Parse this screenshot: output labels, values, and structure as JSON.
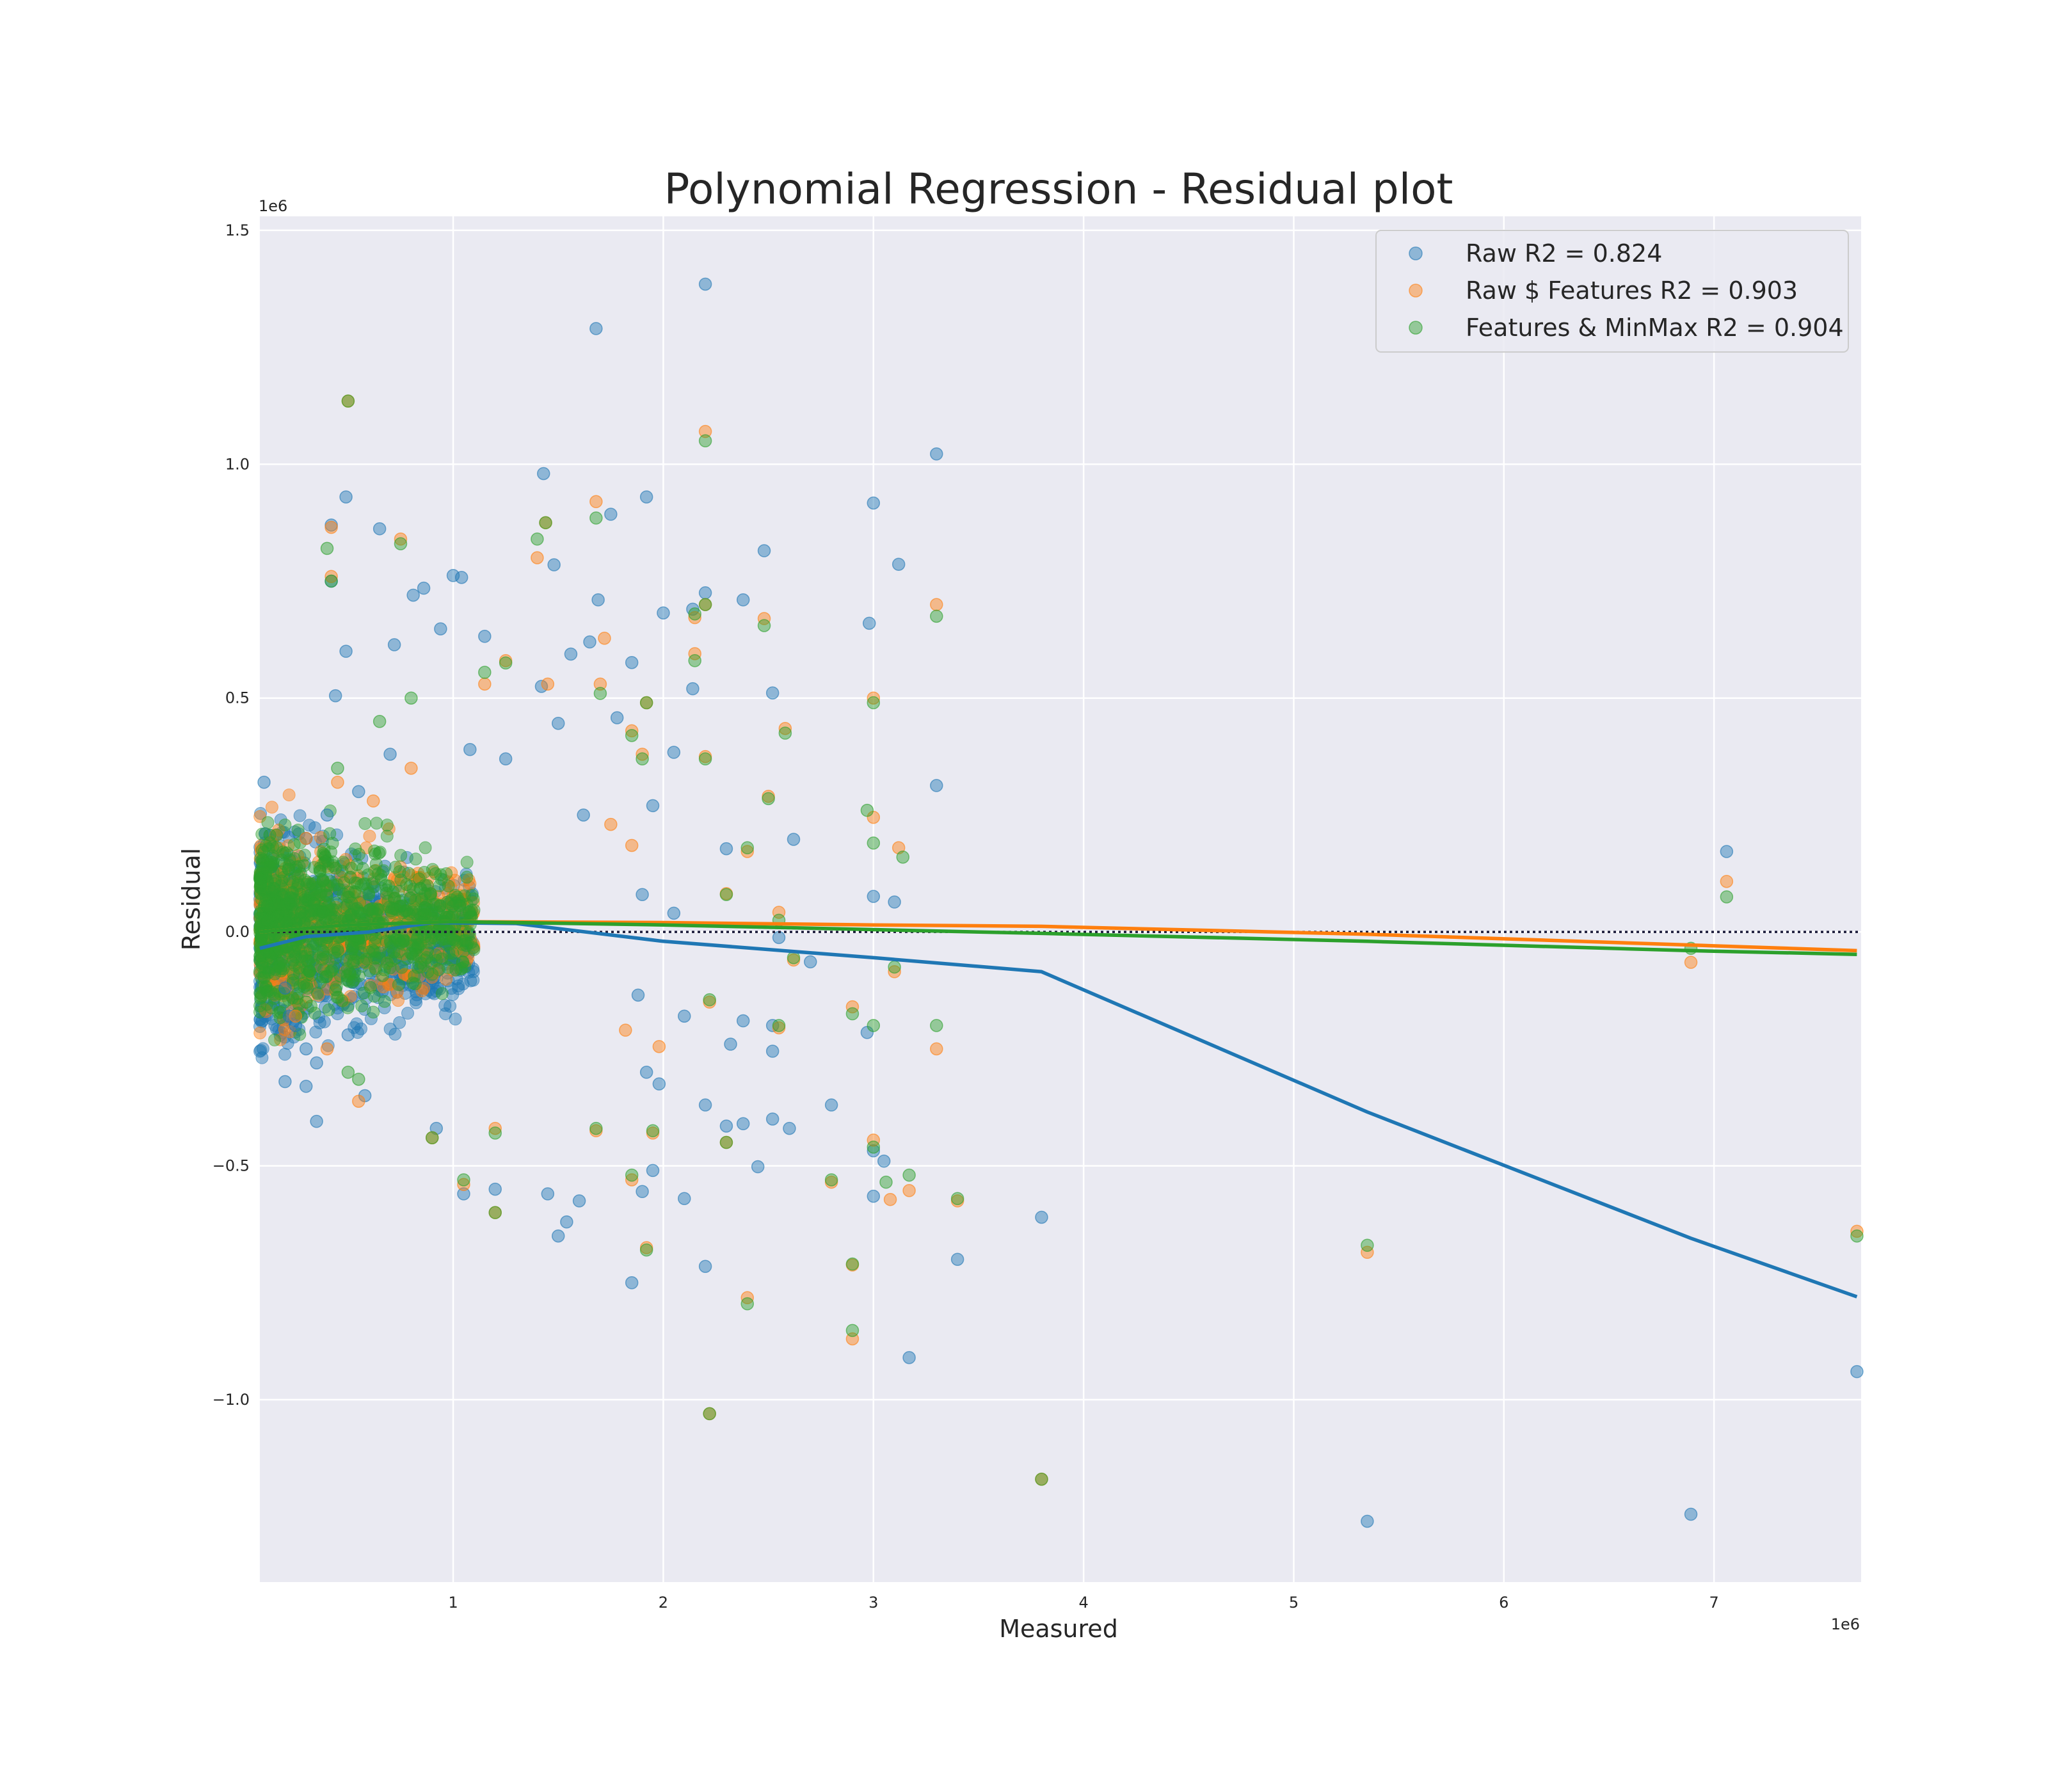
{
  "chart_data": {
    "type": "scatter",
    "title": "Polynomial Regression - Residual plot",
    "xlabel": "Measured",
    "ylabel": "Residual",
    "x_multiplier_label": "1e6",
    "y_multiplier_label": "1e6",
    "xlim": [
      0.08,
      7.7
    ],
    "ylim": [
      -1.39,
      1.53
    ],
    "x_ticks": [
      1,
      2,
      3,
      4,
      5,
      6,
      7
    ],
    "x_tick_labels": [
      "1",
      "2",
      "3",
      "4",
      "5",
      "6",
      "7"
    ],
    "y_ticks": [
      -1.0,
      -0.5,
      0.0,
      0.5,
      1.0,
      1.5
    ],
    "y_tick_labels": [
      "−1.0",
      "−0.5",
      "0.0",
      "0.5",
      "1.0",
      "1.5"
    ],
    "grid": true,
    "legend_position": "top-right",
    "zero_line": {
      "y": 0,
      "style": "dotted",
      "color": "#1a1a3a"
    },
    "series": [
      {
        "name": "Raw R2 = 0.824",
        "color": "#1f77b4",
        "points": [
          [
            2.2,
            1.385
          ],
          [
            1.68,
            1.29
          ],
          [
            3.3,
            1.022
          ],
          [
            1.43,
            0.98
          ],
          [
            0.49,
            0.93
          ],
          [
            1.92,
            0.93
          ],
          [
            3.0,
            0.917
          ],
          [
            0.65,
            0.862
          ],
          [
            1.75,
            0.893
          ],
          [
            0.42,
            0.87
          ],
          [
            0.42,
            0.75
          ],
          [
            2.48,
            0.815
          ],
          [
            3.12,
            0.786
          ],
          [
            1.48,
            0.785
          ],
          [
            0.86,
            0.735
          ],
          [
            0.81,
            0.72
          ],
          [
            1.0,
            0.762
          ],
          [
            1.04,
            0.758
          ],
          [
            1.69,
            0.71
          ],
          [
            2.2,
            0.725
          ],
          [
            2.14,
            0.69
          ],
          [
            2.38,
            0.71
          ],
          [
            0.49,
            0.6
          ],
          [
            2.0,
            0.682
          ],
          [
            2.98,
            0.66
          ],
          [
            0.94,
            0.648
          ],
          [
            1.65,
            0.62
          ],
          [
            0.72,
            0.614
          ],
          [
            1.15,
            0.632
          ],
          [
            1.56,
            0.594
          ],
          [
            1.85,
            0.576
          ],
          [
            0.44,
            0.505
          ],
          [
            2.52,
            0.511
          ],
          [
            1.42,
            0.525
          ],
          [
            2.14,
            0.52
          ],
          [
            1.78,
            0.458
          ],
          [
            1.5,
            0.446
          ],
          [
            1.08,
            0.39
          ],
          [
            1.25,
            0.37
          ],
          [
            2.05,
            0.384
          ],
          [
            1.95,
            0.27
          ],
          [
            1.62,
            0.25
          ],
          [
            0.1,
            0.32
          ],
          [
            2.62,
            0.198
          ],
          [
            2.3,
            0.178
          ],
          [
            3.3,
            0.313
          ],
          [
            7.06,
            0.172
          ],
          [
            3.0,
            0.076
          ],
          [
            3.1,
            0.064
          ],
          [
            1.9,
            0.08
          ],
          [
            2.05,
            0.04
          ],
          [
            2.7,
            -0.064
          ],
          [
            2.55,
            -0.012
          ],
          [
            1.88,
            -0.135
          ],
          [
            2.1,
            -0.18
          ],
          [
            2.38,
            -0.19
          ],
          [
            2.52,
            -0.2
          ],
          [
            2.32,
            -0.24
          ],
          [
            2.97,
            -0.215
          ],
          [
            2.52,
            -0.255
          ],
          [
            1.92,
            -0.3
          ],
          [
            1.98,
            -0.325
          ],
          [
            2.2,
            -0.37
          ],
          [
            2.8,
            -0.37
          ],
          [
            2.6,
            -0.42
          ],
          [
            2.3,
            -0.415
          ],
          [
            2.38,
            -0.41
          ],
          [
            2.52,
            -0.4
          ],
          [
            3.0,
            -0.468
          ],
          [
            3.05,
            -0.49
          ],
          [
            2.45,
            -0.502
          ],
          [
            1.95,
            -0.51
          ],
          [
            3.0,
            -0.565
          ],
          [
            2.1,
            -0.57
          ],
          [
            1.9,
            -0.555
          ],
          [
            1.45,
            -0.56
          ],
          [
            1.6,
            -0.575
          ],
          [
            1.54,
            -0.62
          ],
          [
            1.5,
            -0.65
          ],
          [
            2.2,
            -0.715
          ],
          [
            1.85,
            -0.75
          ],
          [
            3.4,
            -0.7
          ],
          [
            3.8,
            -0.61
          ],
          [
            3.17,
            -0.91
          ],
          [
            0.35,
            -0.405
          ],
          [
            0.92,
            -0.42
          ],
          [
            1.05,
            -0.56
          ],
          [
            1.2,
            -0.55
          ],
          [
            0.58,
            -0.35
          ],
          [
            0.3,
            -0.33
          ],
          [
            0.2,
            -0.32
          ],
          [
            7.68,
            -0.94
          ],
          [
            5.35,
            -1.26
          ],
          [
            6.89,
            -1.245
          ],
          [
            0.3,
            0.2
          ],
          [
            0.4,
            0.25
          ],
          [
            0.55,
            0.3
          ],
          [
            0.7,
            0.38
          ],
          [
            0.25,
            -0.2
          ],
          [
            0.3,
            -0.25
          ],
          [
            0.35,
            -0.28
          ],
          [
            0.22,
            -0.18
          ],
          [
            0.2,
            -0.12
          ],
          [
            0.5,
            -0.22
          ]
        ]
      },
      {
        "name": "Raw $ Features R2 = 0.903",
        "color": "#ff7f0e",
        "points": [
          [
            0.5,
            1.135
          ],
          [
            2.2,
            1.07
          ],
          [
            1.68,
            0.92
          ],
          [
            1.44,
            0.875
          ],
          [
            0.42,
            0.865
          ],
          [
            0.75,
            0.84
          ],
          [
            1.4,
            0.8
          ],
          [
            0.42,
            0.76
          ],
          [
            3.3,
            0.7
          ],
          [
            2.2,
            0.7
          ],
          [
            2.48,
            0.67
          ],
          [
            2.15,
            0.672
          ],
          [
            2.15,
            0.595
          ],
          [
            1.72,
            0.628
          ],
          [
            1.25,
            0.58
          ],
          [
            1.7,
            0.53
          ],
          [
            3.0,
            0.5
          ],
          [
            1.15,
            0.53
          ],
          [
            1.45,
            0.53
          ],
          [
            1.92,
            0.49
          ],
          [
            2.58,
            0.435
          ],
          [
            1.85,
            0.43
          ],
          [
            1.9,
            0.38
          ],
          [
            2.2,
            0.375
          ],
          [
            2.5,
            0.29
          ],
          [
            3.0,
            0.245
          ],
          [
            1.75,
            0.23
          ],
          [
            3.12,
            0.18
          ],
          [
            1.85,
            0.185
          ],
          [
            2.4,
            0.172
          ],
          [
            2.3,
            0.082
          ],
          [
            7.06,
            0.108
          ],
          [
            2.55,
            0.042
          ],
          [
            2.62,
            -0.06
          ],
          [
            3.1,
            -0.085
          ],
          [
            1.98,
            -0.245
          ],
          [
            3.3,
            -0.25
          ],
          [
            2.55,
            -0.205
          ],
          [
            2.9,
            -0.16
          ],
          [
            1.82,
            -0.21
          ],
          [
            2.22,
            -0.15
          ],
          [
            1.95,
            -0.43
          ],
          [
            3.0,
            -0.445
          ],
          [
            2.3,
            -0.45
          ],
          [
            1.68,
            -0.425
          ],
          [
            1.2,
            -0.42
          ],
          [
            1.85,
            -0.53
          ],
          [
            2.8,
            -0.535
          ],
          [
            3.08,
            -0.572
          ],
          [
            3.17,
            -0.553
          ],
          [
            3.4,
            -0.575
          ],
          [
            1.92,
            -0.675
          ],
          [
            2.9,
            -0.712
          ],
          [
            2.4,
            -0.782
          ],
          [
            2.9,
            -0.87
          ],
          [
            0.55,
            -0.362
          ],
          [
            0.9,
            -0.44
          ],
          [
            1.05,
            -0.54
          ],
          [
            1.2,
            -0.6
          ],
          [
            5.35,
            -0.685
          ],
          [
            6.89,
            -0.065
          ],
          [
            7.68,
            -0.64
          ],
          [
            3.8,
            -1.17
          ],
          [
            2.22,
            -1.03
          ],
          [
            0.3,
            0.2
          ],
          [
            0.45,
            0.32
          ],
          [
            0.62,
            0.28
          ],
          [
            0.8,
            0.35
          ],
          [
            0.25,
            -0.18
          ],
          [
            0.4,
            -0.25
          ]
        ]
      },
      {
        "name": "Features & MinMax R2 = 0.904",
        "color": "#2ca02c",
        "points": [
          [
            0.5,
            1.135
          ],
          [
            2.2,
            1.05
          ],
          [
            1.68,
            0.885
          ],
          [
            1.44,
            0.875
          ],
          [
            1.4,
            0.84
          ],
          [
            0.75,
            0.83
          ],
          [
            0.4,
            0.82
          ],
          [
            0.42,
            0.75
          ],
          [
            3.3,
            0.675
          ],
          [
            2.48,
            0.655
          ],
          [
            2.2,
            0.7
          ],
          [
            2.15,
            0.68
          ],
          [
            2.15,
            0.58
          ],
          [
            1.25,
            0.575
          ],
          [
            1.15,
            0.555
          ],
          [
            1.7,
            0.51
          ],
          [
            3.0,
            0.49
          ],
          [
            1.92,
            0.49
          ],
          [
            2.58,
            0.425
          ],
          [
            1.85,
            0.42
          ],
          [
            1.9,
            0.37
          ],
          [
            2.2,
            0.37
          ],
          [
            2.5,
            0.285
          ],
          [
            2.97,
            0.26
          ],
          [
            3.0,
            0.19
          ],
          [
            3.14,
            0.16
          ],
          [
            2.4,
            0.18
          ],
          [
            7.06,
            0.075
          ],
          [
            2.3,
            0.08
          ],
          [
            2.55,
            0.025
          ],
          [
            2.62,
            -0.055
          ],
          [
            3.1,
            -0.075
          ],
          [
            3.3,
            -0.2
          ],
          [
            3.0,
            -0.2
          ],
          [
            2.55,
            -0.2
          ],
          [
            2.9,
            -0.175
          ],
          [
            2.22,
            -0.145
          ],
          [
            1.95,
            -0.425
          ],
          [
            3.0,
            -0.46
          ],
          [
            2.3,
            -0.45
          ],
          [
            1.68,
            -0.42
          ],
          [
            1.2,
            -0.43
          ],
          [
            1.85,
            -0.52
          ],
          [
            2.8,
            -0.53
          ],
          [
            3.17,
            -0.52
          ],
          [
            3.4,
            -0.57
          ],
          [
            3.06,
            -0.535
          ],
          [
            1.92,
            -0.68
          ],
          [
            2.9,
            -0.71
          ],
          [
            2.4,
            -0.795
          ],
          [
            2.9,
            -0.852
          ],
          [
            0.55,
            -0.315
          ],
          [
            0.9,
            -0.44
          ],
          [
            1.05,
            -0.53
          ],
          [
            1.2,
            -0.6
          ],
          [
            5.35,
            -0.67
          ],
          [
            6.89,
            -0.035
          ],
          [
            7.68,
            -0.65
          ],
          [
            3.8,
            -1.17
          ],
          [
            2.22,
            -1.03
          ],
          [
            0.45,
            0.35
          ],
          [
            0.65,
            0.45
          ],
          [
            0.8,
            0.5
          ],
          [
            0.3,
            -0.15
          ],
          [
            0.5,
            -0.3
          ]
        ]
      }
    ],
    "trend_lines": [
      {
        "series": "Raw R2 = 0.824",
        "color": "#1f77b4",
        "points": [
          [
            0.08,
            -0.035
          ],
          [
            0.3,
            -0.01
          ],
          [
            0.6,
            0.0
          ],
          [
            0.9,
            0.02
          ],
          [
            1.3,
            0.018
          ],
          [
            2.0,
            -0.02
          ],
          [
            3.0,
            -0.055
          ],
          [
            3.8,
            -0.085
          ],
          [
            5.35,
            -0.385
          ],
          [
            6.89,
            -0.655
          ],
          [
            7.68,
            -0.78
          ]
        ]
      },
      {
        "series": "Raw $ Features R2 = 0.903",
        "color": "#ff7f0e",
        "points": [
          [
            0.08,
            0.0
          ],
          [
            0.5,
            0.015
          ],
          [
            1.0,
            0.022
          ],
          [
            2.0,
            0.02
          ],
          [
            3.0,
            0.015
          ],
          [
            3.8,
            0.012
          ],
          [
            5.35,
            -0.005
          ],
          [
            6.89,
            -0.028
          ],
          [
            7.68,
            -0.04
          ]
        ]
      },
      {
        "series": "Features & MinMax R2 = 0.904",
        "color": "#2ca02c",
        "points": [
          [
            0.08,
            0.0
          ],
          [
            0.5,
            0.015
          ],
          [
            1.0,
            0.022
          ],
          [
            2.0,
            0.015
          ],
          [
            3.0,
            0.005
          ],
          [
            3.8,
            -0.003
          ],
          [
            5.35,
            -0.02
          ],
          [
            6.89,
            -0.04
          ],
          [
            7.68,
            -0.048
          ]
        ]
      }
    ],
    "dense_clusters": [
      {
        "series": "Raw R2 = 0.824",
        "color": "#1f77b4",
        "x_range": [
          0.08,
          1.1
        ],
        "y_center": -0.02,
        "y_spread": 0.2,
        "count": 900
      },
      {
        "series": "Raw $ Features R2 = 0.903",
        "color": "#ff7f0e",
        "x_range": [
          0.08,
          1.1
        ],
        "y_center": 0.02,
        "y_spread": 0.18,
        "count": 500
      },
      {
        "series": "Features & MinMax R2 = 0.904",
        "color": "#2ca02c",
        "x_range": [
          0.08,
          1.1
        ],
        "y_center": 0.02,
        "y_spread": 0.18,
        "count": 900
      }
    ]
  }
}
